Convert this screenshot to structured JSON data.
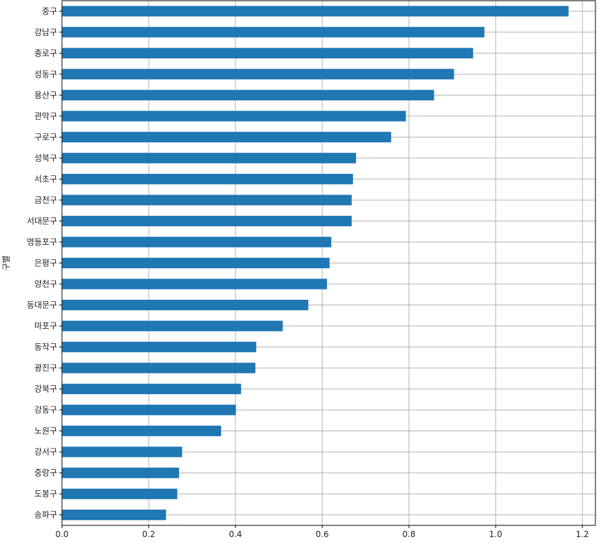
{
  "chart_data": {
    "type": "bar",
    "orientation": "horizontal",
    "ylabel": "구별",
    "xlabel": "",
    "title": "",
    "xlim": [
      0.0,
      1.23
    ],
    "xticks": [
      "0.0",
      "0.2",
      "0.4",
      "0.6",
      "0.8",
      "1.0",
      "1.2"
    ],
    "grid": true,
    "bar_color": "#1f77b4",
    "grid_color": "#b0b0b0",
    "categories": [
      "중구",
      "강남구",
      "종로구",
      "성동구",
      "용산구",
      "관악구",
      "구로구",
      "성북구",
      "서초구",
      "금천구",
      "서대문구",
      "영등포구",
      "은평구",
      "양천구",
      "동대문구",
      "마포구",
      "동작구",
      "광진구",
      "강북구",
      "강동구",
      "노원구",
      "강서구",
      "중랑구",
      "도봉구",
      "송파구"
    ],
    "values": [
      1.168,
      0.974,
      0.948,
      0.904,
      0.858,
      0.793,
      0.759,
      0.678,
      0.671,
      0.668,
      0.668,
      0.621,
      0.617,
      0.611,
      0.568,
      0.509,
      0.448,
      0.446,
      0.413,
      0.401,
      0.367,
      0.277,
      0.27,
      0.266,
      0.24
    ]
  }
}
